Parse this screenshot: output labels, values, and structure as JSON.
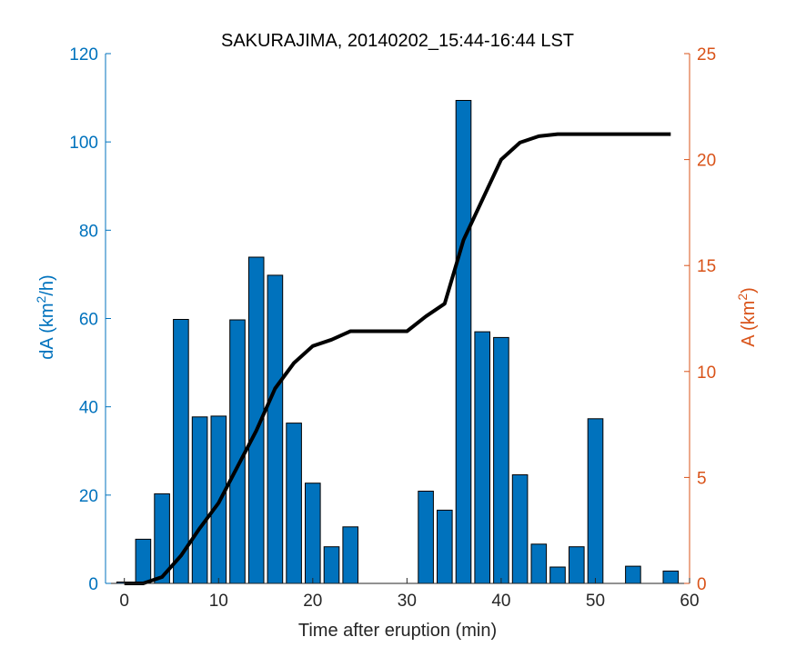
{
  "chart_data": {
    "type": "bar",
    "title": "SAKURAJIMA, 20140202_15:44-16:44 LST",
    "xlabel": "Time after eruption (min)",
    "ylabel_left": {
      "base": "dA (km",
      "sup": "2",
      "tail": "/h)"
    },
    "ylabel_right": {
      "base": "A (km",
      "sup": "2",
      "tail": ")"
    },
    "xlim": [
      -2,
      60
    ],
    "xticks": [
      0,
      10,
      20,
      30,
      40,
      50,
      60
    ],
    "ylim_left": [
      0,
      120
    ],
    "yticks_left": [
      0,
      20,
      40,
      60,
      80,
      100,
      120
    ],
    "ylim_right": [
      0,
      25
    ],
    "yticks_right": [
      0,
      5,
      10,
      15,
      20,
      25
    ],
    "bar_width": 1.6,
    "colors": {
      "bars": "#0072BD",
      "bar_edge": "#000000",
      "line": "#000000",
      "left_axis": "#0072BD",
      "right_axis": "#D95319"
    },
    "series": [
      {
        "type": "bar",
        "axis": "left",
        "x": [
          0,
          2,
          4,
          6,
          8,
          10,
          12,
          14,
          16,
          18,
          20,
          22,
          24,
          26,
          28,
          30,
          32,
          34,
          36,
          38,
          40,
          42,
          44,
          46,
          48,
          50,
          52,
          54,
          56,
          58
        ],
        "values": [
          0.3,
          10,
          20.3,
          59.8,
          37.7,
          37.9,
          59.7,
          73.9,
          69.8,
          36.3,
          22.7,
          8.3,
          12.8,
          0,
          0,
          0,
          20.9,
          16.6,
          109.4,
          57.0,
          55.7,
          24.6,
          8.9,
          3.7,
          8.3,
          37.3,
          0,
          3.9,
          0,
          2.8
        ]
      },
      {
        "type": "line",
        "axis": "right",
        "x": [
          0,
          2,
          4,
          6,
          8,
          10,
          12,
          14,
          16,
          18,
          20,
          22,
          24,
          26,
          28,
          30,
          32,
          34,
          36,
          38,
          40,
          42,
          44,
          46,
          48,
          50,
          52,
          54,
          56,
          58
        ],
        "values": [
          0,
          0,
          0.3,
          1.3,
          2.6,
          3.8,
          5.5,
          7.2,
          9.2,
          10.4,
          11.2,
          11.5,
          11.9,
          11.9,
          11.9,
          11.9,
          12.6,
          13.2,
          16.2,
          18.1,
          20.0,
          20.8,
          21.1,
          21.2,
          21.2,
          21.2,
          21.2,
          21.2,
          21.2,
          21.2
        ]
      }
    ]
  }
}
